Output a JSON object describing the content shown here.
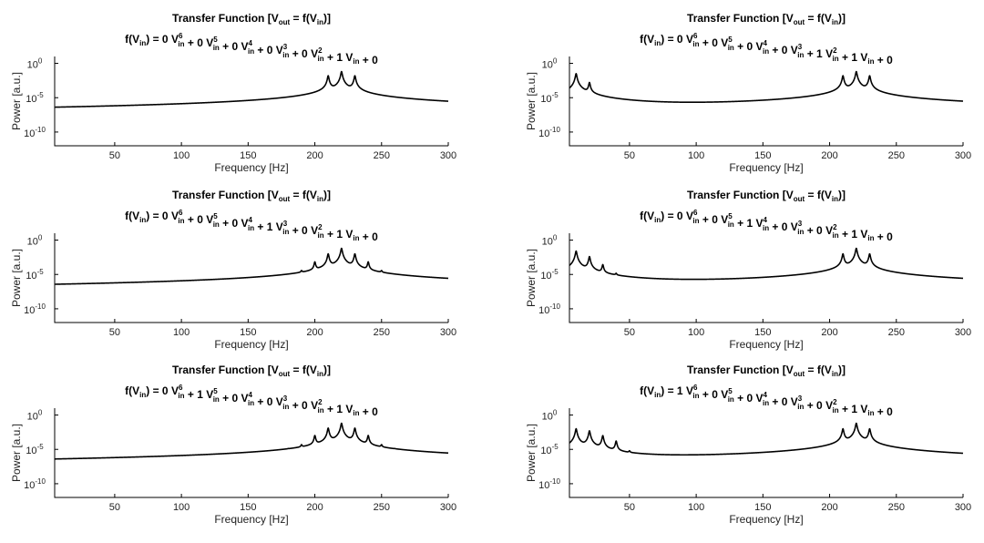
{
  "chart_data": [
    {
      "type": "line",
      "title_line1": {
        "main": "Transfer Function [V",
        "sub1": "out",
        "mid": " = f(V",
        "sub2": "in",
        "end": ")]"
      },
      "equation": {
        "prefix": "f(V",
        "prefix_sub": "in",
        "prefix_end": ") = ",
        "coeffs": [
          "0",
          "0",
          "0",
          "0",
          "0",
          "1",
          "0"
        ]
      },
      "xlabel": "Frequency [Hz]",
      "ylabel": "Power [a.u.]",
      "xlim": [
        5,
        300
      ],
      "ylim_log10": [
        -12,
        1
      ],
      "yscale": "log",
      "xticks": [
        50,
        100,
        150,
        200,
        250,
        300
      ],
      "yticks": [
        {
          "exp": 0,
          "label": "10",
          "sup": "0"
        },
        {
          "exp": -5,
          "label": "10",
          "sup": "-5"
        },
        {
          "exp": -10,
          "label": "10",
          "sup": "-10"
        }
      ],
      "peaks_hz": [
        210,
        220,
        230
      ],
      "peak_log10": [
        -1.8,
        -1.2,
        -1.8
      ]
    },
    {
      "type": "line",
      "title_line1": {
        "main": "Transfer Function [V",
        "sub1": "out",
        "mid": " = f(V",
        "sub2": "in",
        "end": ")]"
      },
      "equation": {
        "prefix": "f(V",
        "prefix_sub": "in",
        "prefix_end": ") = ",
        "coeffs": [
          "0",
          "0",
          "0",
          "0",
          "1",
          "1",
          "0"
        ]
      },
      "xlabel": "Frequency [Hz]",
      "ylabel": "Power [a.u.]",
      "xlim": [
        5,
        300
      ],
      "ylim_log10": [
        -12,
        1
      ],
      "yscale": "log",
      "xticks": [
        50,
        100,
        150,
        200,
        250,
        300
      ],
      "yticks": [
        {
          "exp": 0,
          "label": "10",
          "sup": "0"
        },
        {
          "exp": -5,
          "label": "10",
          "sup": "-5"
        },
        {
          "exp": -10,
          "label": "10",
          "sup": "-10"
        }
      ],
      "peaks_hz": [
        10,
        20,
        210,
        220,
        230
      ],
      "peak_log10": [
        -1.5,
        -2.8,
        -1.8,
        -1.2,
        -1.8
      ]
    },
    {
      "type": "line",
      "title_line1": {
        "main": "Transfer Function [V",
        "sub1": "out",
        "mid": " = f(V",
        "sub2": "in",
        "end": ")]"
      },
      "equation": {
        "prefix": "f(V",
        "prefix_sub": "in",
        "prefix_end": ") = ",
        "coeffs": [
          "0",
          "0",
          "0",
          "1",
          "0",
          "1",
          "0"
        ]
      },
      "xlabel": "Frequency [Hz]",
      "ylabel": "Power [a.u.]",
      "xlim": [
        5,
        300
      ],
      "ylim_log10": [
        -12,
        1
      ],
      "yscale": "log",
      "xticks": [
        50,
        100,
        150,
        200,
        250,
        300
      ],
      "yticks": [
        {
          "exp": 0,
          "label": "10",
          "sup": "0"
        },
        {
          "exp": -5,
          "label": "10",
          "sup": "-5"
        },
        {
          "exp": -10,
          "label": "10",
          "sup": "-10"
        }
      ],
      "peaks_hz": [
        190,
        200,
        210,
        220,
        230,
        240,
        250
      ],
      "peak_log10": [
        -4.8,
        -3.2,
        -2.0,
        -1.2,
        -2.0,
        -3.2,
        -4.8
      ]
    },
    {
      "type": "line",
      "title_line1": {
        "main": "Transfer Function [V",
        "sub1": "out",
        "mid": " = f(V",
        "sub2": "in",
        "end": ")]"
      },
      "equation": {
        "prefix": "f(V",
        "prefix_sub": "in",
        "prefix_end": ") = ",
        "coeffs": [
          "0",
          "0",
          "1",
          "0",
          "0",
          "1",
          "0"
        ]
      },
      "xlabel": "Frequency [Hz]",
      "ylabel": "Power [a.u.]",
      "xlim": [
        5,
        300
      ],
      "ylim_log10": [
        -12,
        1
      ],
      "yscale": "log",
      "xticks": [
        50,
        100,
        150,
        200,
        250,
        300
      ],
      "yticks": [
        {
          "exp": 0,
          "label": "10",
          "sup": "0"
        },
        {
          "exp": -5,
          "label": "10",
          "sup": "-5"
        },
        {
          "exp": -10,
          "label": "10",
          "sup": "-10"
        }
      ],
      "peaks_hz": [
        10,
        20,
        30,
        40,
        210,
        220,
        230
      ],
      "peak_log10": [
        -1.6,
        -2.4,
        -3.6,
        -5.2,
        -2.0,
        -1.2,
        -2.0
      ]
    },
    {
      "type": "line",
      "title_line1": {
        "main": "Transfer Function [V",
        "sub1": "out",
        "mid": " = f(V",
        "sub2": "in",
        "end": ")]"
      },
      "equation": {
        "prefix": "f(V",
        "prefix_sub": "in",
        "prefix_end": ") = ",
        "coeffs": [
          "0",
          "1",
          "0",
          "0",
          "0",
          "1",
          "0"
        ]
      },
      "xlabel": "Frequency [Hz]",
      "ylabel": "Power [a.u.]",
      "xlim": [
        5,
        300
      ],
      "ylim_log10": [
        -12,
        1
      ],
      "yscale": "log",
      "xticks": [
        50,
        100,
        150,
        200,
        250,
        300
      ],
      "yticks": [
        {
          "exp": 0,
          "label": "10",
          "sup": "0"
        },
        {
          "exp": -5,
          "label": "10",
          "sup": "-5"
        },
        {
          "exp": -10,
          "label": "10",
          "sup": "-10"
        }
      ],
      "peaks_hz": [
        170,
        180,
        190,
        200,
        210,
        220,
        230,
        240,
        250,
        260,
        270
      ],
      "peak_log10": [
        -8.5,
        -6.2,
        -4.6,
        -3.0,
        -1.9,
        -1.2,
        -1.9,
        -3.0,
        -4.6,
        -6.2,
        -8.5
      ]
    },
    {
      "type": "line",
      "title_line1": {
        "main": "Transfer Function [V",
        "sub1": "out",
        "mid": " = f(V",
        "sub2": "in",
        "end": ")]"
      },
      "equation": {
        "prefix": "f(V",
        "prefix_sub": "in",
        "prefix_end": ") = ",
        "coeffs": [
          "1",
          "0",
          "0",
          "0",
          "0",
          "1",
          "0"
        ]
      },
      "xlabel": "Frequency [Hz]",
      "ylabel": "Power [a.u.]",
      "xlim": [
        5,
        300
      ],
      "ylim_log10": [
        -12,
        1
      ],
      "yscale": "log",
      "xticks": [
        50,
        100,
        150,
        200,
        250,
        300
      ],
      "yticks": [
        {
          "exp": 0,
          "label": "10",
          "sup": "0"
        },
        {
          "exp": -5,
          "label": "10",
          "sup": "-5"
        },
        {
          "exp": -10,
          "label": "10",
          "sup": "-10"
        }
      ],
      "peaks_hz": [
        10,
        20,
        30,
        40,
        50,
        60,
        210,
        220,
        230
      ],
      "peak_log10": [
        -2.0,
        -2.3,
        -3.0,
        -3.8,
        -5.6,
        -8.4,
        -2.0,
        -1.2,
        -2.0
      ]
    }
  ]
}
